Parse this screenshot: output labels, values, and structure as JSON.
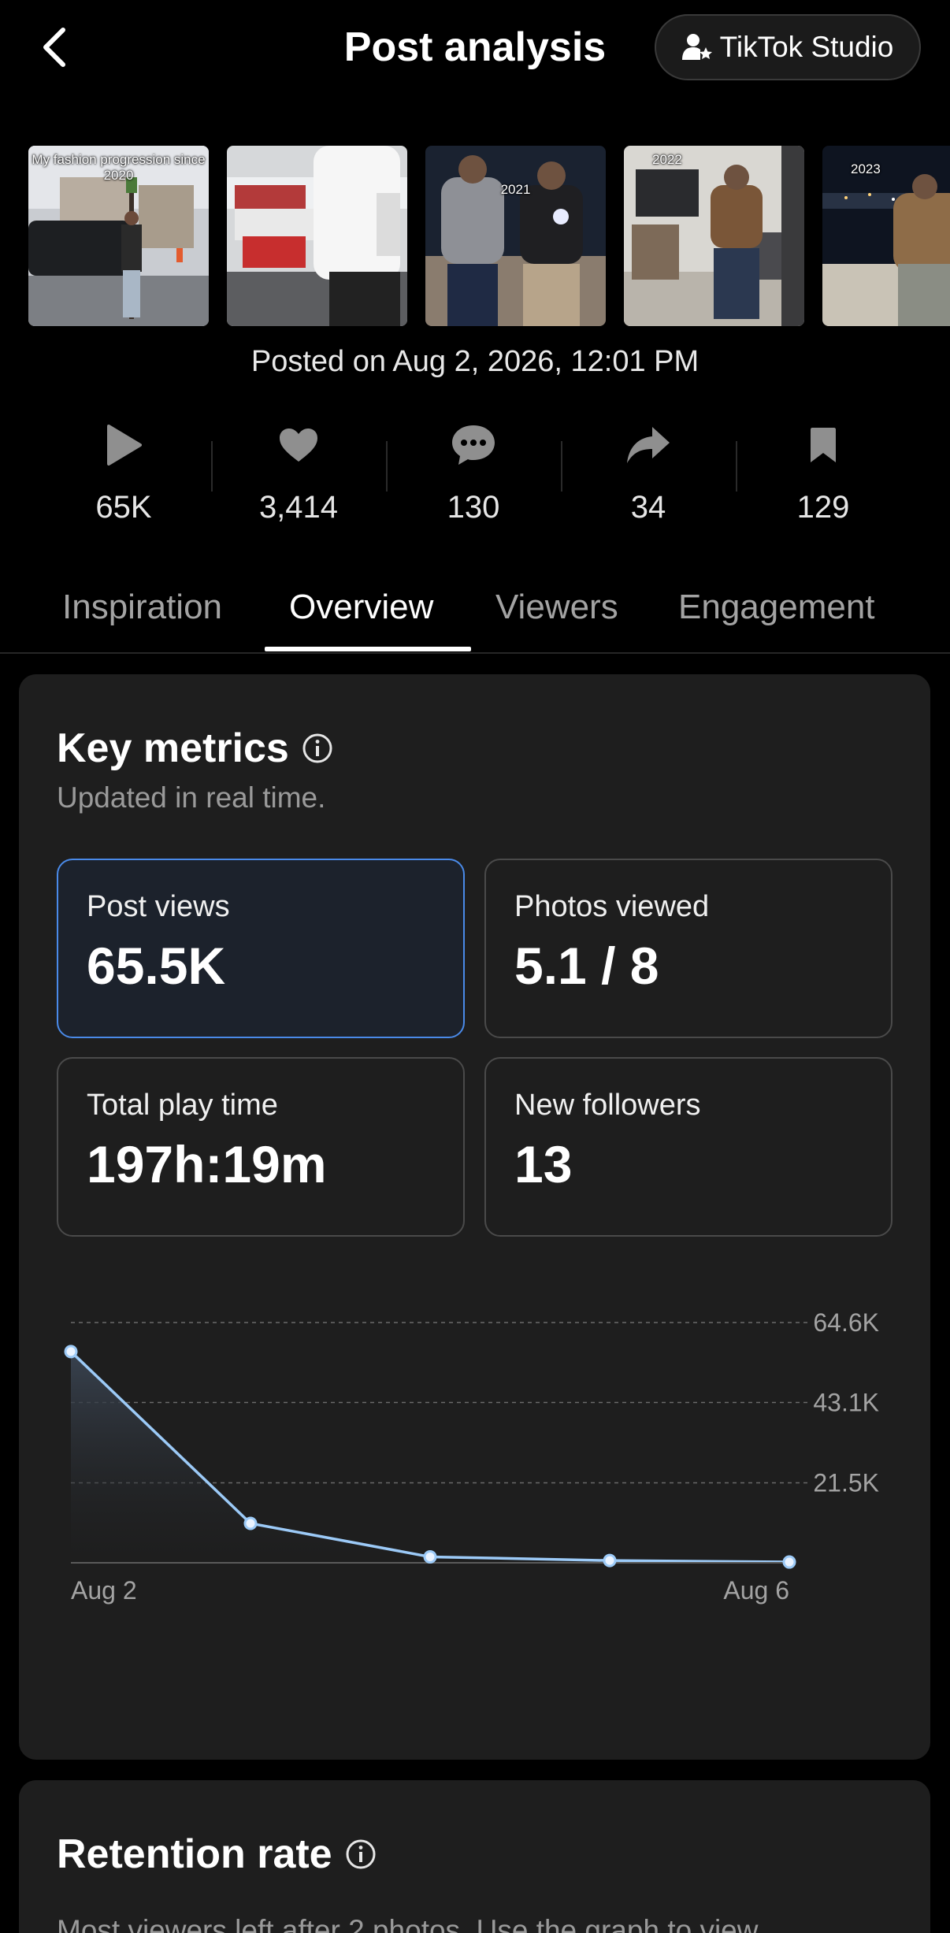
{
  "header": {
    "title": "Post analysis",
    "studio_label": "TikTok Studio"
  },
  "thumbnails": [
    {
      "caption": "My fashion progression since 2020"
    },
    {
      "caption": ""
    },
    {
      "caption": "2021"
    },
    {
      "caption": "2022"
    },
    {
      "caption": "2023"
    }
  ],
  "posted": "Posted on Aug 2, 2026, 12:01 PM",
  "stats": {
    "views": "65K",
    "likes": "3,414",
    "comments": "130",
    "shares": "34",
    "saves": "129"
  },
  "tabs": [
    "Inspiration",
    "Overview",
    "Viewers",
    "Engagement"
  ],
  "key_metrics": {
    "title": "Key metrics",
    "subtitle": "Updated in real time.",
    "cards": [
      {
        "label": "Post views",
        "value": "65.5K"
      },
      {
        "label": "Photos viewed",
        "value": "5.1 / 8"
      },
      {
        "label": "Total play time",
        "value": "197h:19m"
      },
      {
        "label": "New followers",
        "value": "13"
      }
    ]
  },
  "chart_data": {
    "type": "area",
    "x": [
      "Aug 2",
      "Aug 3",
      "Aug 4",
      "Aug 5",
      "Aug 6"
    ],
    "x_tick_labels": [
      "Aug 2",
      "Aug 6"
    ],
    "series": [
      {
        "values": [
          56800,
          10600,
          1600,
          600,
          200
        ]
      }
    ],
    "y_ticks": [
      21500,
      43100,
      64600
    ],
    "y_tick_labels": [
      "21.5K",
      "43.1K",
      "64.6K"
    ],
    "ylim": [
      0,
      64600
    ],
    "grid": true,
    "line_color": "#9ccaf7"
  },
  "retention": {
    "title": "Retention rate",
    "text": "Most viewers left after 2 photos. Use the graph to view"
  },
  "colors": {
    "accent": "#4a8ae8",
    "card_bg": "#1e1e1e"
  }
}
